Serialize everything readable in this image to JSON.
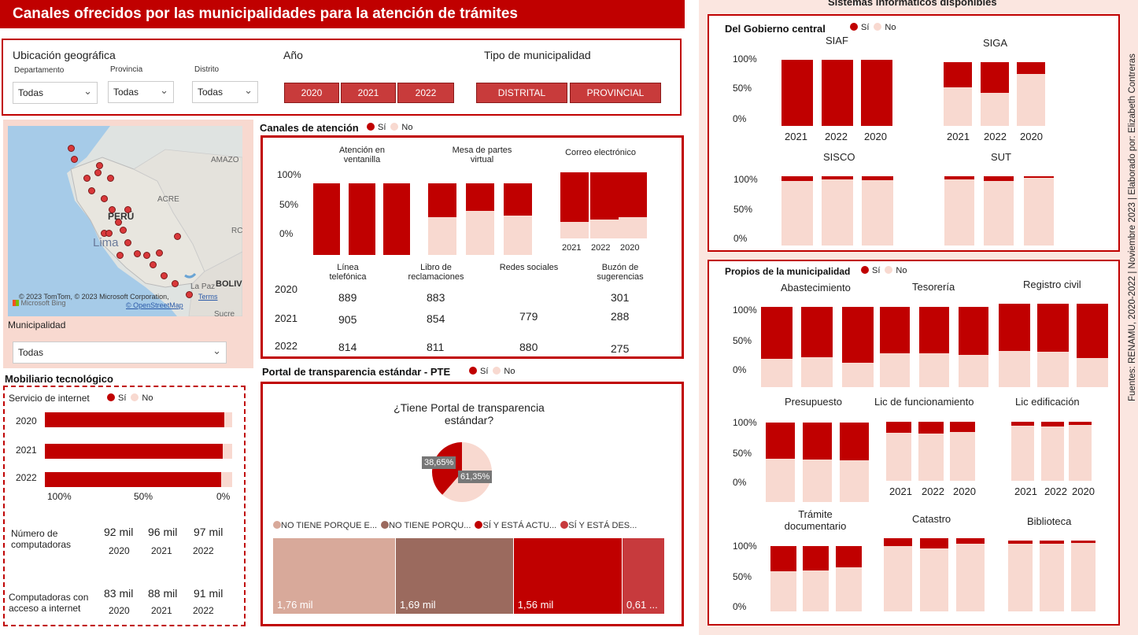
{
  "title": "Canales ofrecidos por las municipalidades para la atención de trámites",
  "colors": {
    "si": "#c00000",
    "no": "#f8d9d0"
  },
  "filters": {
    "ubicacion_label": "Ubicación geográfica",
    "departamento_label": "Departamento",
    "provincia_label": "Provincia",
    "distrito_label": "Distrito",
    "departamento_value": "Todas",
    "provincia_value": "Todas",
    "distrito_value": "Todas",
    "anio_label": "Año",
    "anios": [
      "2020",
      "2021",
      "2022"
    ],
    "tipo_label": "Tipo de municipalidad",
    "tipos": [
      "DISTRITAL",
      "PROVINCIAL"
    ]
  },
  "map": {
    "labels": [
      "AMAZO",
      "ACRE",
      "PERÚ",
      "Lima",
      "La Paz",
      "BOLIV",
      "Sucre",
      "RC"
    ],
    "attribution": "© 2023 TomTom, © 2023 Microsoft Corporation,",
    "terms": "Terms",
    "osm": "© OpenStreetMap",
    "bing": "Microsoft Bing",
    "municipalidad_label": "Municipalidad",
    "municipalidad_value": "Todas"
  },
  "legend": {
    "si": "Sí",
    "no": "No"
  },
  "canales": {
    "title": "Canales de atención",
    "groups": [
      "Atención en ventanilla",
      "Mesa de partes virtual",
      "Correo electrónico"
    ],
    "years_order": [
      "2021",
      "2022",
      "2020"
    ],
    "axis": [
      "100%",
      "50%",
      "0%"
    ],
    "chart_data": {
      "type": "bar",
      "stacked": true,
      "ylim": [
        0,
        100
      ],
      "groups": [
        {
          "name": "Atención en ventanilla",
          "si": [
            100,
            100,
            100
          ]
        },
        {
          "name": "Mesa de partes virtual",
          "si": [
            47,
            38,
            45
          ]
        },
        {
          "name": "Correo electrónico",
          "si": [
            75,
            72,
            68
          ]
        }
      ]
    },
    "table_headers": [
      "Línea telefónica",
      "Libro de reclamaciones",
      "Redes sociales",
      "Buzón de sugerencias"
    ],
    "table_rows": [
      {
        "year": "2020",
        "values": [
          "889",
          "883",
          "",
          "301"
        ]
      },
      {
        "year": "2021",
        "values": [
          "905",
          "854",
          "779",
          "288"
        ]
      },
      {
        "year": "2022",
        "values": [
          "814",
          "811",
          "880",
          "275"
        ]
      }
    ]
  },
  "mobiliario": {
    "title": "Mobiliario tecnológico",
    "servicio_label": "Servicio de internet",
    "chart_data": {
      "type": "bar",
      "orientation": "horizontal",
      "categories": [
        "2020",
        "2021",
        "2022"
      ],
      "si": [
        96,
        95,
        94
      ]
    },
    "axis": [
      "100%",
      "50%",
      "0%"
    ],
    "num_comp_label": "Número de computadoras",
    "num_comp_values": [
      "92 mil",
      "96 mil",
      "97 mil"
    ],
    "comp_int_label": "Computadoras con acceso a internet",
    "comp_int_values": [
      "83 mil",
      "88 mil",
      "91 mil"
    ],
    "years": [
      "2020",
      "2021",
      "2022"
    ]
  },
  "pte": {
    "title": "Portal de transparencia estándar - PTE",
    "question": "¿Tiene Portal de transparencia estándar?",
    "chart_data": {
      "type": "pie",
      "slices": [
        {
          "label": "Sí",
          "value": 38.65
        },
        {
          "label": "No",
          "value": 61.35
        }
      ]
    },
    "pie_labels": [
      "38,65%",
      "61,35%"
    ],
    "tree_legend": [
      "NO TIENE PORQUE E...",
      "NO TIENE PORQU...",
      "SÍ Y ESTÁ ACTU...",
      "SÍ Y ESTÁ DES..."
    ],
    "tree_colors": [
      "#d8a99a",
      "#9b6a5e",
      "#c00000",
      "#c73a3d"
    ],
    "tree_values": [
      1.76,
      1.69,
      1.56,
      0.61
    ],
    "tree_labels": [
      "1,76 mil",
      "1,69 mil",
      "1,56 mil",
      "0,61 ..."
    ]
  },
  "sistemas": {
    "title": "Sistemas informáticos disponibles",
    "gobierno_title": "Del Gobierno central",
    "propios_title": "Propios de la municipalidad",
    "axis": [
      "100%",
      "50%",
      "0%"
    ],
    "years_order": [
      "2021",
      "2022",
      "2020"
    ],
    "gobierno": [
      {
        "name": "SIAF",
        "si": [
          100,
          100,
          100
        ]
      },
      {
        "name": "SIGA",
        "si": [
          39,
          48,
          19
        ]
      },
      {
        "name": "SISCO",
        "si": [
          7,
          4,
          6
        ]
      },
      {
        "name": "SUT",
        "si": [
          4,
          7,
          2
        ]
      }
    ],
    "propios": [
      {
        "name": "Abastecimiento",
        "si": [
          65,
          63,
          70
        ]
      },
      {
        "name": "Tesorería",
        "si": [
          58,
          58,
          60
        ]
      },
      {
        "name": "Registro civil",
        "si": [
          57,
          58,
          65
        ]
      },
      {
        "name": "Presupuesto",
        "si": [
          46,
          47,
          48
        ]
      },
      {
        "name": "Lic de funcionamiento",
        "si": [
          18,
          20,
          17
        ]
      },
      {
        "name": "Lic edificación",
        "si": [
          7,
          8,
          5
        ]
      },
      {
        "name": "Trámite documentario",
        "si": [
          38,
          37,
          33
        ]
      },
      {
        "name": "Catastro",
        "si": [
          11,
          14,
          7
        ]
      },
      {
        "name": "Biblioteca",
        "si": [
          4,
          4,
          3
        ]
      }
    ],
    "sources": "Fuentes: RENAMU, 2020-2022 | Noviembre 2023 | Elaborado por: Elizabeth Contreras"
  }
}
